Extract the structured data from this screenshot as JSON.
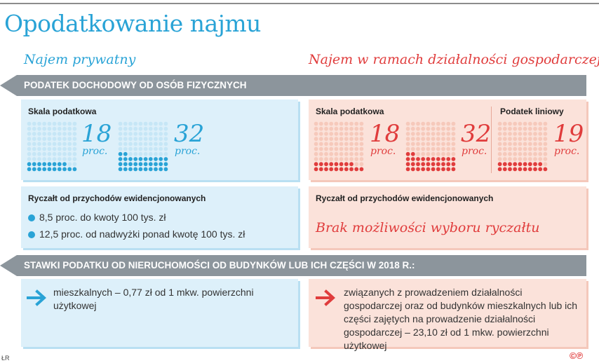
{
  "title": "Opodatkowanie najmu",
  "subheads": {
    "private": "Najem prywatny",
    "business": "Najem w ramach działalności gospodarczej"
  },
  "banners": {
    "pit": "PODATEK DOCHODOWY OD OSÓB FIZYCZNYCH",
    "property": "STAWKI PODATKU OD NIERUCHOMOŚCI OD BUDYNKÓW LUB ICH CZĘŚCI W 2018 R.:"
  },
  "labels": {
    "scale": "Skala podatkowa",
    "linear": "Podatek liniowy",
    "lump": "Ryczałt od przychodów ewidencjonowanych"
  },
  "unit": "proc.",
  "colors": {
    "blue": "#29a3d6",
    "red": "#e03c3c",
    "blue_light": "#c6e6f6",
    "red_light": "#f6c9bb",
    "banner": "#8c959c"
  },
  "chart_data": [
    {
      "type": "bar",
      "title": "Skala podatkowa",
      "group": "Najem prywatny",
      "categories": [
        "18 proc.",
        "32 proc."
      ],
      "values": [
        18,
        32
      ],
      "unit": "proc.",
      "ylim": [
        0,
        100
      ]
    },
    {
      "type": "bar",
      "title": "Skala podatkowa",
      "group": "Najem w ramach działalności gospodarczej",
      "categories": [
        "18 proc.",
        "32 proc."
      ],
      "values": [
        18,
        32
      ],
      "unit": "proc.",
      "ylim": [
        0,
        100
      ]
    },
    {
      "type": "bar",
      "title": "Podatek liniowy",
      "group": "Najem w ramach działalności gospodarczej",
      "categories": [
        "19 proc."
      ],
      "values": [
        19
      ],
      "unit": "proc.",
      "ylim": [
        0,
        100
      ]
    }
  ],
  "lump_private": [
    "8,5 proc. do kwoty 100 tys. zł",
    "12,5 proc. od nadwyżki ponad kwotę 100 tys. zł"
  ],
  "lump_business": "Brak możliwości wyboru ryczałtu",
  "property_private": "mieszkalnych – 0,77 zł od 1 mkw. powierzchni użytkowej",
  "property_business": "związanych z prowadzeniem działalności gospodarczej oraz od budynków mieszkalnych lub ich części zajętych na prowadzenie działalności gospodarczej – 23,10 zł od 1 mkw. powierzchni użytkowej",
  "footer": {
    "credit": "ŁR",
    "logo": "©℗"
  }
}
